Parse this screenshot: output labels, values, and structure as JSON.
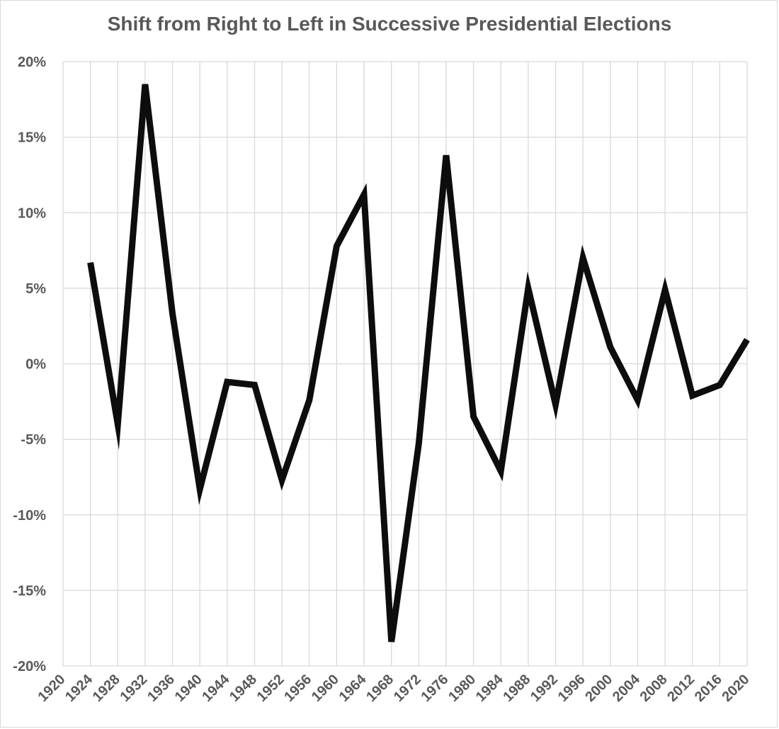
{
  "chart_data": {
    "type": "line",
    "title": "Shift from Right to Left in Successive Presidential Elections",
    "xlabel": "",
    "ylabel": "",
    "categories": [
      "1920",
      "1924",
      "1928",
      "1932",
      "1936",
      "1940",
      "1944",
      "1948",
      "1952",
      "1956",
      "1960",
      "1964",
      "1968",
      "1972",
      "1976",
      "1980",
      "1984",
      "1988",
      "1992",
      "1996",
      "2000",
      "2004",
      "2008",
      "2012",
      "2016",
      "2020"
    ],
    "series": [
      {
        "name": "Shift",
        "color": "#0d0d0d",
        "values": [
          null,
          6.7,
          -4.0,
          18.5,
          3.3,
          -8.3,
          -1.2,
          -1.4,
          -7.7,
          -2.4,
          7.8,
          11.2,
          -18.4,
          -5.3,
          13.8,
          -3.5,
          -7.1,
          5.0,
          -2.7,
          7.0,
          1.1,
          -2.4,
          4.9,
          -2.1,
          -1.4,
          1.6
        ]
      }
    ],
    "ylim": [
      -20,
      20
    ],
    "yticks": [
      20,
      15,
      10,
      5,
      0,
      -5,
      -10,
      -15,
      -20
    ],
    "ytick_labels": [
      "20%",
      "15%",
      "10%",
      "5%",
      "0%",
      "-5%",
      "-10%",
      "-15%",
      "-20%"
    ],
    "grid": true,
    "legend": "none"
  }
}
